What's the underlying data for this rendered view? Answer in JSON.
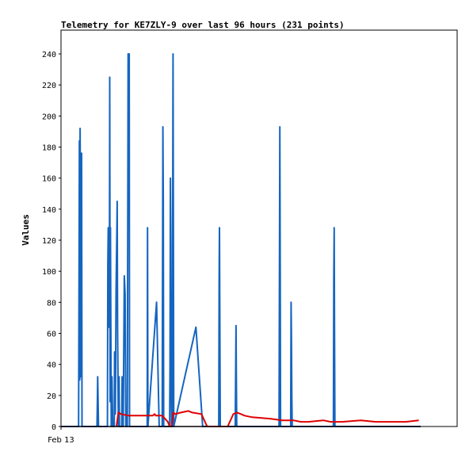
{
  "chart_data": {
    "type": "line",
    "title": "Telemetry for KE7ZLY-9 over last 96 hours (231 points)",
    "xlabel": "",
    "ylabel": "Values",
    "x_tick_labels": [
      "Feb 13"
    ],
    "ylim": [
      0,
      240
    ],
    "yticks": [
      0,
      20,
      40,
      60,
      80,
      100,
      120,
      140,
      160,
      180,
      200,
      220,
      240
    ],
    "grid": false,
    "legend": "none",
    "x_range_hours": 96,
    "series": [
      {
        "color": "#1565c0",
        "points": [
          [
            0,
            0
          ],
          [
            4.7,
            0
          ],
          [
            4.8,
            88
          ],
          [
            4.9,
            184
          ],
          [
            5.0,
            30
          ],
          [
            5.1,
            192
          ],
          [
            5.2,
            128
          ],
          [
            5.3,
            32
          ],
          [
            5.4,
            88
          ],
          [
            5.5,
            176
          ],
          [
            5.6,
            0
          ],
          [
            9.6,
            0
          ],
          [
            9.7,
            16
          ],
          [
            9.8,
            32
          ],
          [
            9.9,
            16
          ],
          [
            10.0,
            0
          ],
          [
            12.4,
            0
          ],
          [
            12.5,
            104
          ],
          [
            12.6,
            128
          ],
          [
            12.7,
            64
          ],
          [
            12.8,
            112
          ],
          [
            12.9,
            64
          ],
          [
            13.0,
            225
          ],
          [
            13.1,
            16
          ],
          [
            13.2,
            128
          ],
          [
            13.3,
            64
          ],
          [
            13.4,
            0
          ],
          [
            13.6,
            32
          ],
          [
            13.8,
            0
          ],
          [
            14.2,
            0
          ],
          [
            14.3,
            48
          ],
          [
            14.5,
            8
          ],
          [
            14.7,
            88
          ],
          [
            14.9,
            126
          ],
          [
            15.0,
            145
          ],
          [
            15.1,
            64
          ],
          [
            15.3,
            0
          ],
          [
            15.5,
            32
          ],
          [
            15.6,
            0
          ],
          [
            16.2,
            0
          ],
          [
            16.3,
            32
          ],
          [
            16.6,
            0
          ],
          [
            16.9,
            97
          ],
          [
            17.1,
            85
          ],
          [
            17.3,
            0
          ],
          [
            17.7,
            0
          ],
          [
            17.8,
            120
          ],
          [
            17.9,
            240
          ],
          [
            18.0,
            208
          ],
          [
            18.1,
            200
          ],
          [
            18.2,
            240
          ],
          [
            18.3,
            0
          ],
          [
            23.0,
            0
          ],
          [
            23.1,
            128
          ],
          [
            23.2,
            0
          ],
          [
            25.5,
            80
          ],
          [
            26.2,
            0
          ],
          [
            27.0,
            0
          ],
          [
            27.2,
            193
          ],
          [
            27.3,
            145
          ],
          [
            27.4,
            0
          ],
          [
            29.0,
            0
          ],
          [
            29.1,
            40
          ],
          [
            29.2,
            160
          ],
          [
            29.3,
            120
          ],
          [
            29.4,
            40
          ],
          [
            29.5,
            0
          ],
          [
            29.7,
            0
          ],
          [
            29.8,
            120
          ],
          [
            29.9,
            240
          ],
          [
            30.0,
            120
          ],
          [
            30.1,
            0
          ],
          [
            36.0,
            64
          ],
          [
            37.8,
            0
          ],
          [
            42.1,
            0
          ],
          [
            42.2,
            96
          ],
          [
            42.3,
            128
          ],
          [
            42.4,
            64
          ],
          [
            42.5,
            0
          ],
          [
            46.5,
            0
          ],
          [
            46.6,
            32
          ],
          [
            46.7,
            65
          ],
          [
            46.8,
            32
          ],
          [
            46.9,
            0
          ],
          [
            58.2,
            0
          ],
          [
            58.3,
            97
          ],
          [
            58.4,
            193
          ],
          [
            58.5,
            96
          ],
          [
            58.6,
            0
          ],
          [
            61.3,
            0
          ],
          [
            61.4,
            80
          ],
          [
            61.5,
            60
          ],
          [
            61.6,
            20
          ],
          [
            61.7,
            0
          ],
          [
            72.7,
            0
          ],
          [
            72.8,
            96
          ],
          [
            72.9,
            128
          ],
          [
            73.0,
            64
          ],
          [
            73.1,
            0
          ],
          [
            96,
            0
          ]
        ]
      },
      {
        "color": "#e00000",
        "points": [
          [
            14.8,
            0
          ],
          [
            15.3,
            9
          ],
          [
            16.0,
            8
          ],
          [
            18.0,
            7
          ],
          [
            21.0,
            7
          ],
          [
            24.5,
            7
          ],
          [
            25.0,
            8
          ],
          [
            25.3,
            7
          ],
          [
            27.0,
            7
          ],
          [
            28.5,
            3
          ],
          [
            29.0,
            0
          ],
          [
            29.5,
            0
          ],
          [
            30.0,
            9
          ],
          [
            30.5,
            8
          ],
          [
            32.0,
            9
          ],
          [
            34.0,
            10
          ],
          [
            35.0,
            9
          ],
          [
            37.5,
            8
          ],
          [
            39.0,
            0
          ],
          [
            44.5,
            0
          ],
          [
            46.0,
            8
          ],
          [
            47.0,
            9
          ],
          [
            48.0,
            8
          ],
          [
            49.0,
            7
          ],
          [
            51.0,
            6
          ],
          [
            56.0,
            5
          ],
          [
            59.0,
            4
          ],
          [
            62.0,
            4
          ],
          [
            64.0,
            3
          ],
          [
            66.0,
            3
          ],
          [
            70.0,
            4
          ],
          [
            72.0,
            3
          ],
          [
            75.0,
            3
          ],
          [
            80.0,
            4
          ],
          [
            84.0,
            3
          ],
          [
            88.0,
            3
          ],
          [
            92.0,
            3
          ],
          [
            95.5,
            4
          ]
        ]
      },
      {
        "color": "#000000",
        "points": [
          [
            0,
            0
          ],
          [
            96,
            0
          ]
        ]
      }
    ]
  }
}
